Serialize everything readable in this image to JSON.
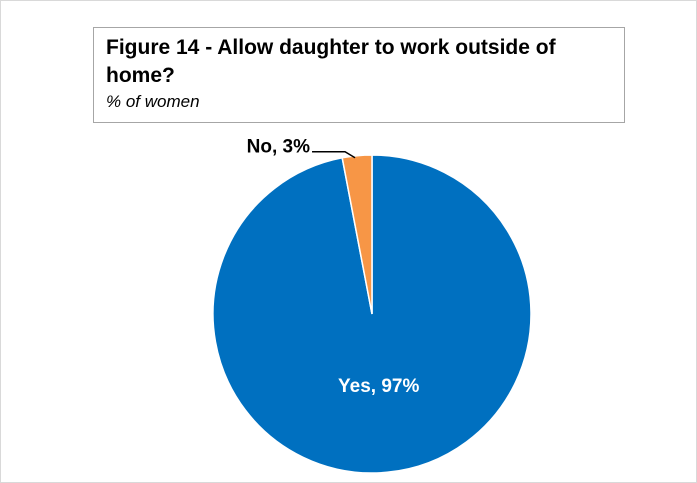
{
  "chart_data": {
    "type": "pie",
    "title": "Figure 14 - Allow daughter to work outside of home?",
    "subtitle": "% of  women",
    "slices": [
      {
        "label": "Yes",
        "value": 97,
        "display": "Yes, 97%",
        "color": "#0070c0",
        "label_color": "#ffffff"
      },
      {
        "label": "No",
        "value": 3,
        "display": "No, 3%",
        "color": "#f79646",
        "label_color": "#000000"
      }
    ],
    "legend": "none"
  }
}
